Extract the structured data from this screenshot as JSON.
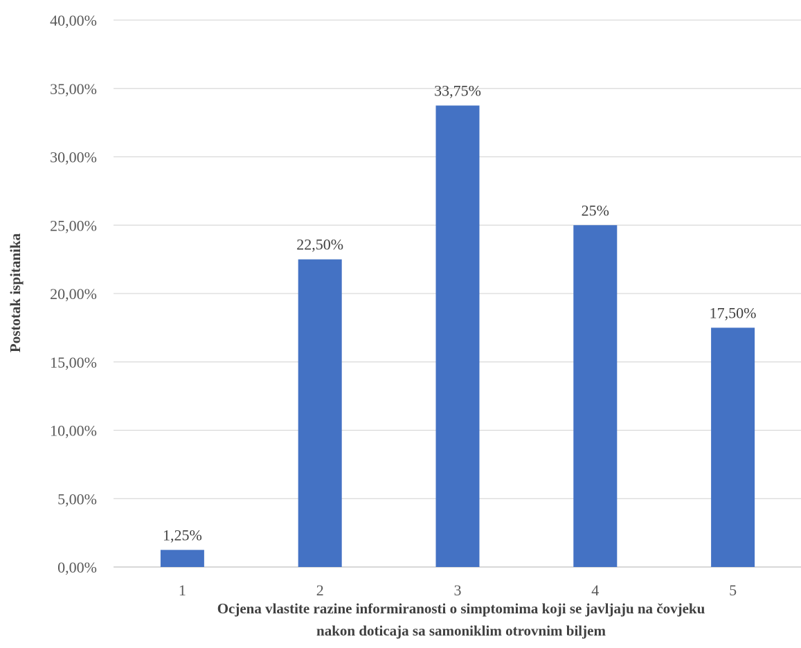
{
  "chart_data": {
    "type": "bar",
    "categories": [
      "1",
      "2",
      "3",
      "4",
      "5"
    ],
    "values": [
      1.25,
      22.5,
      33.75,
      25,
      17.5
    ],
    "data_labels": [
      "1,25%",
      "22,50%",
      "33,75%",
      "25%",
      "17,50%"
    ],
    "ylim": [
      0,
      40
    ],
    "yticks": [
      0,
      5,
      10,
      15,
      20,
      25,
      30,
      35,
      40
    ],
    "ytick_labels": [
      "0,00%",
      "5,00%",
      "10,00%",
      "15,00%",
      "20,00%",
      "25,00%",
      "30,00%",
      "35,00%",
      "40,00%"
    ],
    "ylabel": "Postotak ispitanika",
    "xlabel_lines": [
      "Ocjena vlastite razine informiranosti o simptomima koji se javljaju na čovjeku",
      "nakon doticaja sa samoniklim otrovnim biljem"
    ],
    "grid": true,
    "bar_color": "#4472c4"
  }
}
